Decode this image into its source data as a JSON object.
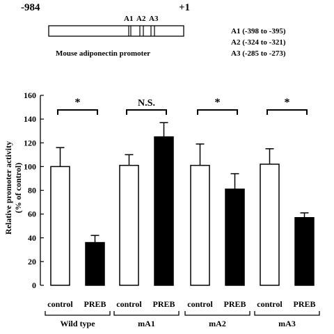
{
  "promoter_diagram": {
    "start_label": "-984",
    "end_label": "+1",
    "caption": "Mouse  adiponectin  promoter",
    "site_labels": [
      "A1",
      "A2",
      "A3"
    ],
    "site_ranges": [
      "A1 (-398 to -395)",
      "A2 (-324 to -321)",
      "A3 (-285 to -273)"
    ]
  },
  "chart_data": {
    "type": "bar",
    "ylabel_line1": "Relative promoter activity",
    "ylabel_line2": "(% of control)",
    "ylim": [
      0,
      160
    ],
    "yticks": [
      0,
      20,
      40,
      60,
      80,
      100,
      120,
      140,
      160
    ],
    "grid": false,
    "groups": [
      {
        "name": "Wild type",
        "significance": "*",
        "bars": [
          {
            "label": "control",
            "value": 100,
            "error": 16,
            "fill": "white"
          },
          {
            "label": "PREB",
            "value": 36,
            "error": 6,
            "fill": "black"
          }
        ]
      },
      {
        "name": "mA1",
        "significance": "N.S.",
        "bars": [
          {
            "label": "control",
            "value": 101,
            "error": 9,
            "fill": "white"
          },
          {
            "label": "PREB",
            "value": 125,
            "error": 12,
            "fill": "black"
          }
        ]
      },
      {
        "name": "mA2",
        "significance": "*",
        "bars": [
          {
            "label": "control",
            "value": 101,
            "error": 18,
            "fill": "white"
          },
          {
            "label": "PREB",
            "value": 81,
            "error": 13,
            "fill": "black"
          }
        ]
      },
      {
        "name": "mA3",
        "significance": "*",
        "bars": [
          {
            "label": "control",
            "value": 102,
            "error": 13,
            "fill": "white"
          },
          {
            "label": "PREB",
            "value": 57,
            "error": 4,
            "fill": "black"
          }
        ]
      }
    ]
  }
}
